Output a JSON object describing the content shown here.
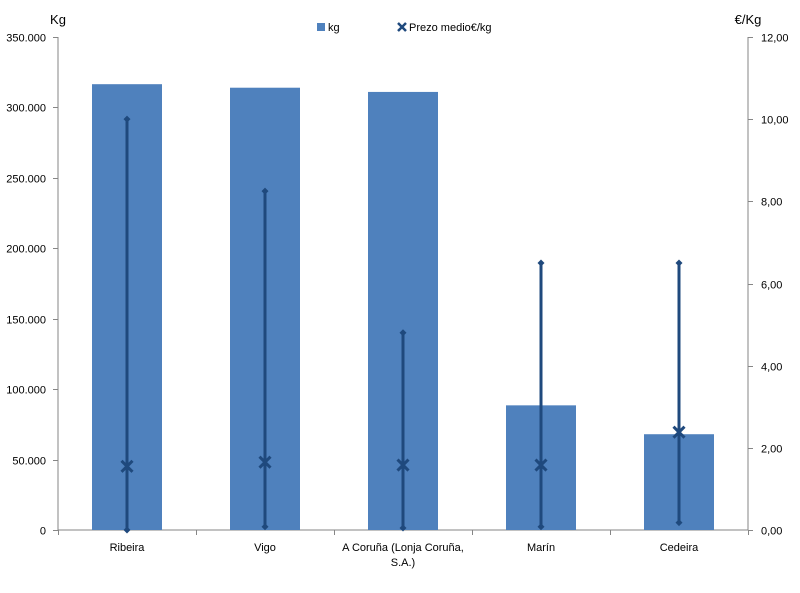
{
  "chart_data": {
    "type": "bar",
    "categories": [
      "Ribeira",
      "Vigo",
      "A Coruña (Lonja Coruña, S.A.)",
      "Marín",
      "Cedeira"
    ],
    "category_lines": [
      [
        "Ribeira"
      ],
      [
        "Vigo"
      ],
      [
        "A Coruña (Lonja Coruña,",
        "S.A.)"
      ],
      [
        "Marín"
      ],
      [
        "Cedeira"
      ]
    ],
    "y_left": {
      "label": "Kg",
      "range": [
        0,
        350000
      ],
      "ticks": [
        0,
        50000,
        100000,
        150000,
        200000,
        250000,
        300000,
        350000
      ],
      "tick_labels": [
        "0",
        "50.000",
        "100.000",
        "150.000",
        "200.000",
        "250.000",
        "300.000",
        "350.000"
      ]
    },
    "y_right": {
      "label": "€/Kg",
      "range": [
        0,
        12
      ],
      "ticks": [
        0,
        2,
        4,
        6,
        8,
        10,
        12
      ],
      "tick_labels": [
        "0,00",
        "2,00",
        "4,00",
        "6,00",
        "8,00",
        "10,00",
        "12,00"
      ]
    },
    "series": [
      {
        "name": "kg",
        "kind": "bar",
        "axis": "left",
        "color": "#4f81bd",
        "values": [
          316500,
          314000,
          311000,
          88500,
          68000
        ]
      },
      {
        "name": "Prezo medio€/kg",
        "kind": "marker",
        "axis": "right",
        "color": "#1f497d",
        "values": [
          1.55,
          1.65,
          1.58,
          1.58,
          2.38
        ],
        "min": [
          0.0,
          0.08,
          0.05,
          0.08,
          0.18
        ],
        "max": [
          10.0,
          8.25,
          4.8,
          6.5,
          6.5
        ]
      }
    ],
    "legend_position": "top",
    "grid": false
  }
}
